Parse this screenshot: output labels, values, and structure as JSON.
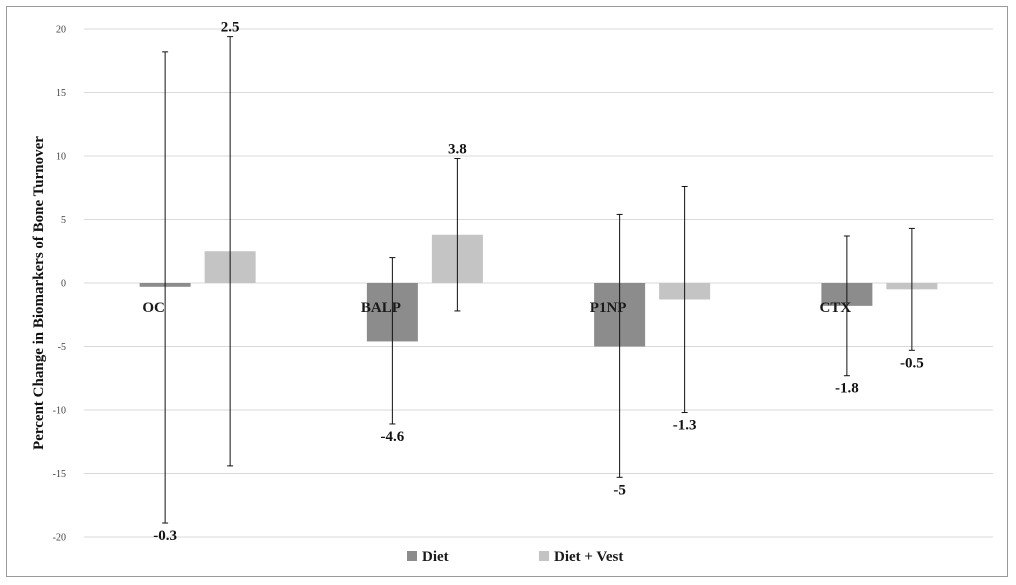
{
  "chart_data": {
    "type": "bar",
    "title": "",
    "xlabel": "",
    "ylabel": "Percent Change in Biomarkers of Bone Turnover",
    "ylim": [
      -20,
      20
    ],
    "yticks": [
      20,
      15,
      10,
      5,
      0,
      -5,
      -10,
      -15,
      -20
    ],
    "grid": true,
    "legend_position": "bottom",
    "categories": [
      "OC",
      "BALP",
      "P1NP",
      "CTX"
    ],
    "series": [
      {
        "name": "Diet",
        "color": "#8c8c8c",
        "values": [
          -0.3,
          -4.6,
          -5,
          -1.8
        ],
        "labels": [
          "-0.3",
          "-4.6",
          "-5",
          "-1.8"
        ],
        "error_upper": [
          18.2,
          2.0,
          5.4,
          3.7
        ],
        "error_lower": [
          -18.9,
          -11.1,
          -15.3,
          -7.3
        ]
      },
      {
        "name": "Diet + Vest",
        "color": "#c4c4c4",
        "values": [
          2.5,
          3.8,
          -1.3,
          -0.5
        ],
        "labels": [
          "2.5",
          "3.8",
          "-1.3",
          "-0.5"
        ],
        "error_upper": [
          19.4,
          9.8,
          7.6,
          4.3
        ],
        "error_lower": [
          -14.4,
          -2.2,
          -10.2,
          -5.3
        ]
      }
    ]
  }
}
